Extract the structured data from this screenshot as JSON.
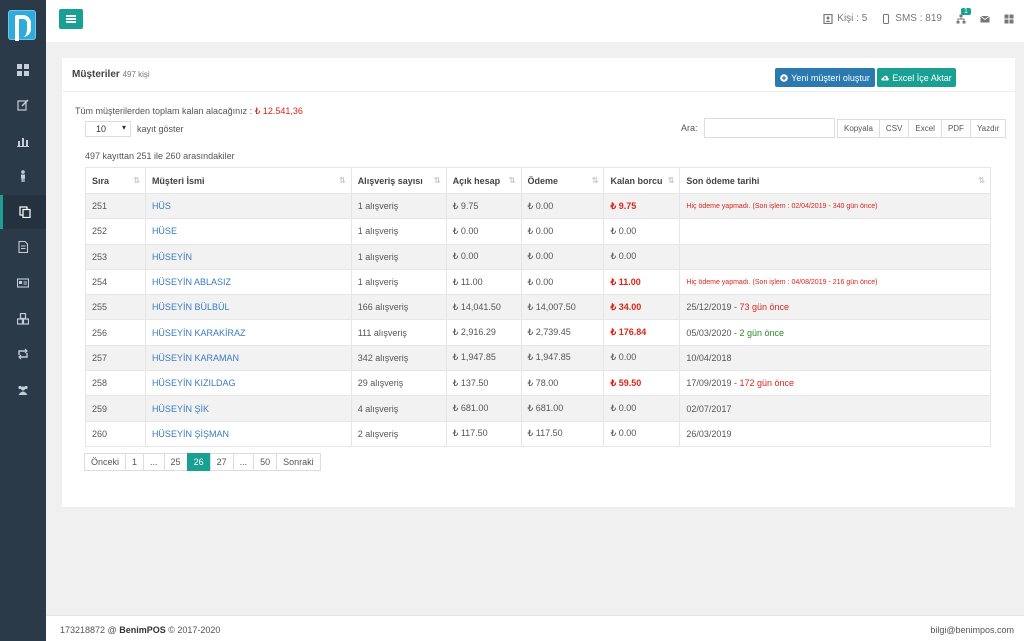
{
  "topbar": {
    "kisi": "Kişi : 5",
    "sms": "SMS : 819",
    "notif_count": "1"
  },
  "panel": {
    "title": "Müşteriler",
    "count": "497 kişi",
    "new_button": "Yeni müşteri oluştur",
    "excel_button": "Excel İçe Aktar"
  },
  "summary": {
    "total_label": "Tüm müşterilerden toplam kalan alacağınız :",
    "total_amount": "₺ 12.541,36",
    "page_size": "10",
    "show_label": "kayıt göster",
    "search_label": "Ara:",
    "info": "497 kayıttan 251 ile 260 arasındakiler"
  },
  "export": [
    "Kopyala",
    "CSV",
    "Excel",
    "PDF",
    "Yazdır"
  ],
  "table": {
    "headers": [
      "Sıra",
      "Müşteri İsmi",
      "Alışveriş sayısı",
      "Açık hesap",
      "Ödeme",
      "Kalan borcu",
      "Son ödeme tarihi"
    ],
    "rows": [
      {
        "sira": "251",
        "name": "HÜS",
        "count": "1 alışveriş",
        "acik": "₺ 9.75",
        "odeme": "₺ 0.00",
        "kalan": "₺ 9.75",
        "kalan_red": true,
        "son": "Hiç ödeme yapmadı. (Son işlem : 02/04/2019 - 340 gün önce)",
        "son_type": "note"
      },
      {
        "sira": "252",
        "name": "HÜSE",
        "count": "1 alışveriş",
        "acik": "₺ 0.00",
        "odeme": "₺ 0.00",
        "kalan": "₺ 0.00",
        "kalan_red": false,
        "son": "",
        "son_type": "plain"
      },
      {
        "sira": "253",
        "name": "HÜSEYİN",
        "count": "1 alışveriş",
        "acik": "₺ 0.00",
        "odeme": "₺ 0.00",
        "kalan": "₺ 0.00",
        "kalan_red": false,
        "son": "",
        "son_type": "plain"
      },
      {
        "sira": "254",
        "name": "HÜSEYİN ABLASIZ",
        "count": "1 alışveriş",
        "acik": "₺ 11.00",
        "odeme": "₺ 0.00",
        "kalan": "₺ 11.00",
        "kalan_red": true,
        "son": "Hiç ödeme yapmadı. (Son işlem : 04/08/2019 - 216 gün önce)",
        "son_type": "note"
      },
      {
        "sira": "255",
        "name": "HÜSEYİN BÜLBÜL",
        "count": "166 alışveriş",
        "acik": "₺ 14,041.50",
        "odeme": "₺ 14,007.50",
        "kalan": "₺ 34.00",
        "kalan_red": true,
        "son": "25/12/2019 - ",
        "son_ago": "73 gün önce",
        "son_type": "red"
      },
      {
        "sira": "256",
        "name": "HÜSEYİN KARAKİRAZ",
        "count": "111 alışveriş",
        "acik": "₺ 2,916.29",
        "odeme": "₺ 2,739.45",
        "kalan": "₺ 176.84",
        "kalan_red": true,
        "son": "05/03/2020 - ",
        "son_ago": "2 gün önce",
        "son_type": "green"
      },
      {
        "sira": "257",
        "name": "HÜSEYİN KARAMAN",
        "count": "342 alışveriş",
        "acik": "₺ 1,947.85",
        "odeme": "₺ 1,947.85",
        "kalan": "₺ 0.00",
        "kalan_red": false,
        "son": "10/04/2018",
        "son_type": "plain"
      },
      {
        "sira": "258",
        "name": "HÜSEYİN KIZILDAG",
        "count": "29 alışveriş",
        "acik": "₺ 137.50",
        "odeme": "₺ 78.00",
        "kalan": "₺ 59.50",
        "kalan_red": true,
        "son": "17/09/2019 - ",
        "son_ago": "172 gün önce",
        "son_type": "red"
      },
      {
        "sira": "259",
        "name": "HÜSEYİN ŞİK",
        "count": "4 alışveriş",
        "acik": "₺ 681.00",
        "odeme": "₺ 681.00",
        "kalan": "₺ 0.00",
        "kalan_red": false,
        "son": "02/07/2017",
        "son_type": "plain"
      },
      {
        "sira": "260",
        "name": "HÜSEYİN ŞİŞMAN",
        "count": "2 alışveriş",
        "acik": "₺ 117.50",
        "odeme": "₺ 117.50",
        "kalan": "₺ 0.00",
        "kalan_red": false,
        "son": "26/03/2019",
        "son_type": "plain"
      }
    ]
  },
  "pager": {
    "items": [
      "Önceki",
      "1",
      "...",
      "25",
      "26",
      "27",
      "...",
      "50",
      "Sonraki"
    ],
    "current": "26"
  },
  "footer": {
    "left_num": "173218872 @",
    "brand": "BenimPOS",
    "copy": "© 2017-2020",
    "email": "bilgi@benimpos.com"
  },
  "colors": {
    "accent": "#1aa093",
    "primary": "#2a7ab0",
    "danger": "#d9261c",
    "sidebar": "#2b3a48"
  }
}
